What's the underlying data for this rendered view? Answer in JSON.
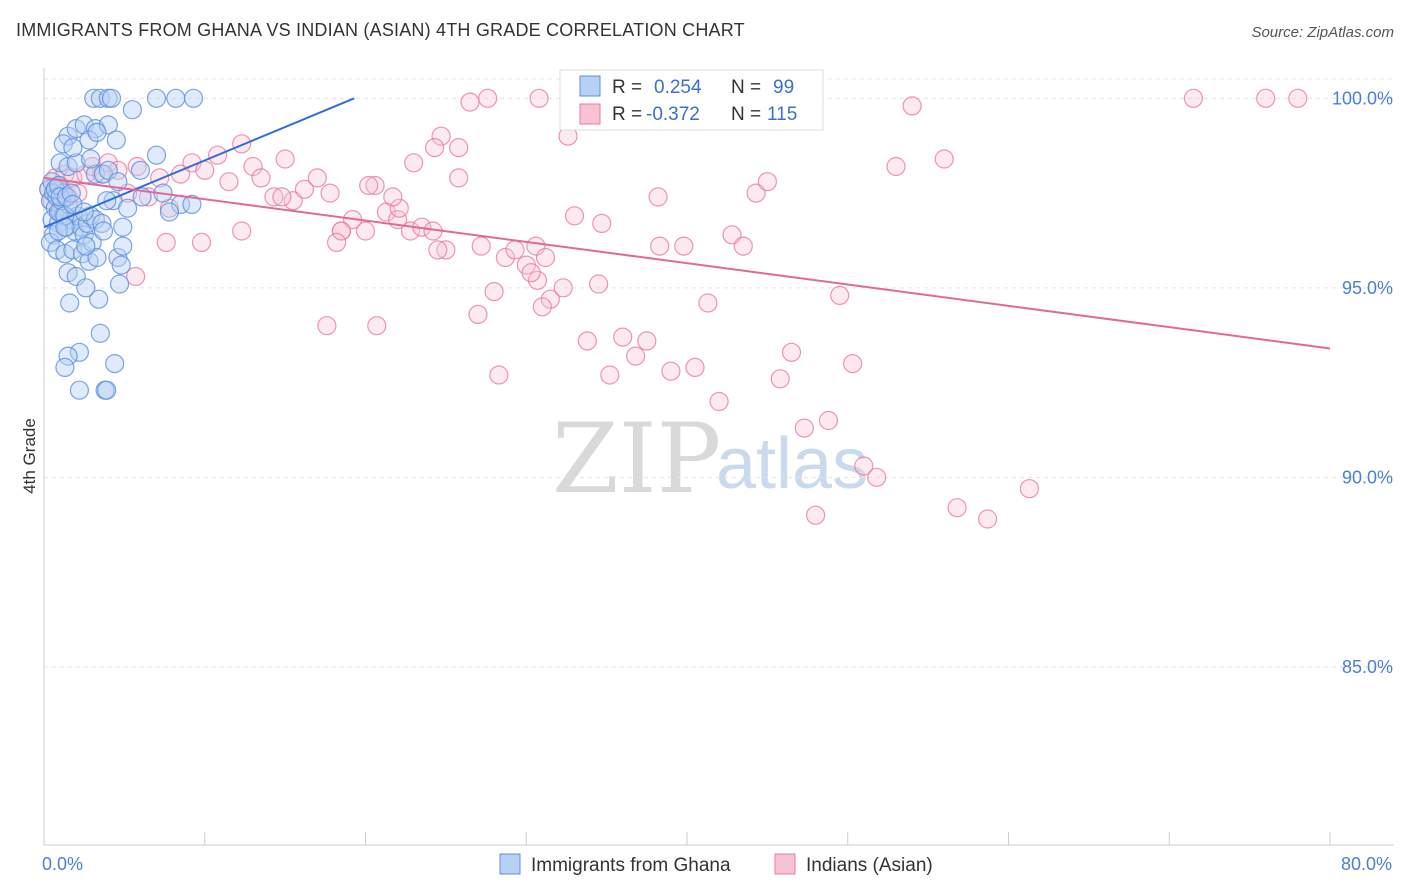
{
  "header": {
    "title": "IMMIGRANTS FROM GHANA VS INDIAN (ASIAN) 4TH GRADE CORRELATION CHART",
    "source": "Source: ZipAtlas.com"
  },
  "watermark": {
    "zip": "ZIP",
    "atlas": "atlas"
  },
  "legend": {
    "r_label": "R =",
    "n_label": "N =",
    "series": [
      {
        "name": "Immigrants from Ghana",
        "r": "0.254",
        "n": "99",
        "color": "#5b8fdc",
        "fill": "#b8d0f3"
      },
      {
        "name": "Indians (Asian)",
        "r": "-0.372",
        "n": "115",
        "color": "#e87ba0",
        "fill": "#f6c3d5"
      }
    ]
  },
  "chart_data": {
    "type": "scatter",
    "title": "IMMIGRANTS FROM GHANA VS INDIAN (ASIAN) 4TH GRADE CORRELATION CHART",
    "xlabel": "",
    "ylabel": "4th Grade",
    "xlim": [
      0,
      80
    ],
    "ylim": [
      80.3,
      100.8
    ],
    "x_tick_labels": [
      "0.0%",
      "80.0%"
    ],
    "y_ticks": [
      85,
      90,
      95,
      100
    ],
    "y_tick_labels": [
      "85.0%",
      "90.0%",
      "95.0%",
      "100.0%"
    ],
    "grid": true,
    "series": [
      {
        "name": "Immigrants from Ghana",
        "color": "#5b8fdc",
        "trend": {
          "x": [
            0.0,
            19.3
          ],
          "y": [
            96.6,
            100.0
          ]
        },
        "points": [
          [
            0.3,
            97.6
          ],
          [
            0.4,
            97.3
          ],
          [
            0.5,
            97.8
          ],
          [
            0.6,
            97.5
          ],
          [
            0.7,
            97.1
          ],
          [
            0.8,
            97.4
          ],
          [
            0.5,
            96.8
          ],
          [
            0.9,
            96.7
          ],
          [
            1.0,
            97.0
          ],
          [
            0.6,
            96.4
          ],
          [
            1.2,
            96.9
          ],
          [
            1.4,
            96.6
          ],
          [
            1.5,
            97.2
          ],
          [
            1.7,
            96.8
          ],
          [
            1.9,
            96.5
          ],
          [
            2.1,
            96.9
          ],
          [
            2.3,
            96.6
          ],
          [
            2.5,
            96.4
          ],
          [
            2.7,
            96.7
          ],
          [
            2.9,
            96.9
          ],
          [
            0.4,
            96.2
          ],
          [
            0.8,
            96.0
          ],
          [
            1.3,
            95.9
          ],
          [
            1.8,
            96.0
          ],
          [
            2.4,
            95.9
          ],
          [
            3.0,
            96.2
          ],
          [
            1.5,
            95.4
          ],
          [
            2.0,
            95.3
          ],
          [
            2.8,
            95.7
          ],
          [
            3.3,
            95.8
          ],
          [
            4.6,
            95.8
          ],
          [
            4.8,
            95.6
          ],
          [
            1.6,
            94.6
          ],
          [
            3.4,
            94.7
          ],
          [
            3.5,
            93.8
          ],
          [
            2.2,
            93.3
          ],
          [
            1.5,
            93.2
          ],
          [
            1.3,
            92.9
          ],
          [
            4.4,
            93.0
          ],
          [
            2.2,
            92.3
          ],
          [
            3.8,
            92.3
          ],
          [
            3.9,
            92.3
          ],
          [
            1.0,
            98.3
          ],
          [
            1.5,
            98.2
          ],
          [
            2.0,
            98.3
          ],
          [
            3.2,
            98.0
          ],
          [
            3.7,
            98.0
          ],
          [
            4.0,
            98.1
          ],
          [
            6.0,
            98.1
          ],
          [
            0.9,
            97.0
          ],
          [
            1.5,
            99.0
          ],
          [
            2.0,
            99.2
          ],
          [
            2.5,
            99.3
          ],
          [
            3.2,
            99.2
          ],
          [
            4.0,
            99.3
          ],
          [
            1.2,
            98.8
          ],
          [
            1.8,
            98.7
          ],
          [
            2.8,
            98.9
          ],
          [
            4.5,
            98.9
          ],
          [
            5.5,
            99.7
          ],
          [
            3.1,
            100.0
          ],
          [
            3.5,
            100.0
          ],
          [
            4.0,
            100.0
          ],
          [
            4.2,
            100.0
          ],
          [
            7.0,
            100.0
          ],
          [
            8.2,
            100.0
          ],
          [
            9.3,
            100.0
          ],
          [
            2.9,
            98.4
          ],
          [
            7.0,
            98.5
          ],
          [
            3.3,
            99.1
          ],
          [
            4.6,
            97.8
          ],
          [
            4.3,
            97.3
          ],
          [
            6.1,
            97.4
          ],
          [
            7.4,
            97.5
          ],
          [
            8.5,
            97.2
          ],
          [
            9.2,
            97.2
          ],
          [
            7.8,
            97.0
          ],
          [
            4.9,
            96.6
          ],
          [
            5.2,
            97.1
          ],
          [
            3.9,
            97.3
          ],
          [
            1.1,
            97.3
          ],
          [
            1.2,
            97.5
          ],
          [
            0.7,
            97.6
          ],
          [
            0.9,
            97.7
          ],
          [
            1.0,
            97.4
          ],
          [
            1.4,
            97.4
          ],
          [
            1.7,
            97.5
          ],
          [
            1.3,
            96.9
          ],
          [
            0.9,
            96.5
          ],
          [
            3.2,
            96.8
          ],
          [
            2.6,
            95.0
          ],
          [
            4.7,
            95.1
          ],
          [
            3.6,
            96.7
          ],
          [
            4.9,
            96.1
          ],
          [
            2.6,
            96.1
          ],
          [
            1.3,
            96.6
          ],
          [
            1.8,
            97.2
          ],
          [
            2.5,
            97.0
          ],
          [
            3.7,
            96.5
          ]
        ]
      },
      {
        "name": "Indians (Asian)",
        "color": "#e87ba0",
        "trend": {
          "x": [
            0.0,
            80.0
          ],
          "y": [
            97.9,
            93.4
          ]
        },
        "points": [
          [
            0.3,
            97.6
          ],
          [
            0.5,
            97.3
          ],
          [
            0.7,
            97.9
          ],
          [
            1.0,
            97.7
          ],
          [
            1.3,
            98.0
          ],
          [
            1.5,
            97.4
          ],
          [
            1.8,
            97.9
          ],
          [
            2.1,
            97.5
          ],
          [
            2.6,
            98.0
          ],
          [
            3.0,
            98.2
          ],
          [
            3.6,
            98.0
          ],
          [
            4.0,
            98.3
          ],
          [
            4.6,
            98.1
          ],
          [
            5.2,
            97.5
          ],
          [
            5.8,
            98.2
          ],
          [
            6.5,
            97.4
          ],
          [
            7.2,
            97.9
          ],
          [
            7.8,
            97.1
          ],
          [
            8.5,
            98.0
          ],
          [
            9.2,
            98.3
          ],
          [
            10.0,
            98.1
          ],
          [
            10.8,
            98.5
          ],
          [
            11.5,
            97.8
          ],
          [
            12.3,
            98.8
          ],
          [
            13.0,
            98.2
          ],
          [
            13.5,
            97.9
          ],
          [
            14.3,
            97.4
          ],
          [
            15.0,
            98.4
          ],
          [
            15.5,
            97.3
          ],
          [
            16.2,
            97.6
          ],
          [
            17.0,
            97.9
          ],
          [
            17.8,
            97.5
          ],
          [
            18.5,
            96.5
          ],
          [
            19.2,
            96.8
          ],
          [
            20.0,
            96.5
          ],
          [
            20.6,
            97.7
          ],
          [
            21.3,
            97.0
          ],
          [
            22.0,
            96.8
          ],
          [
            22.8,
            96.5
          ],
          [
            23.5,
            96.6
          ],
          [
            24.2,
            96.5
          ],
          [
            25.0,
            96.0
          ],
          [
            25.8,
            98.7
          ],
          [
            26.5,
            99.9
          ],
          [
            27.2,
            96.1
          ],
          [
            28.0,
            94.9
          ],
          [
            28.7,
            95.8
          ],
          [
            29.3,
            96.0
          ],
          [
            30.0,
            95.6
          ],
          [
            30.7,
            95.2
          ],
          [
            31.5,
            94.7
          ],
          [
            32.3,
            95.0
          ],
          [
            33.0,
            96.9
          ],
          [
            33.8,
            93.6
          ],
          [
            34.5,
            95.1
          ],
          [
            35.2,
            92.7
          ],
          [
            36.0,
            93.7
          ],
          [
            36.8,
            93.2
          ],
          [
            37.5,
            93.6
          ],
          [
            38.3,
            96.1
          ],
          [
            39.0,
            92.8
          ],
          [
            39.8,
            96.1
          ],
          [
            40.5,
            92.9
          ],
          [
            41.3,
            94.6
          ],
          [
            42.0,
            92.0
          ],
          [
            42.8,
            96.4
          ],
          [
            43.5,
            96.1
          ],
          [
            44.3,
            97.5
          ],
          [
            45.0,
            97.8
          ],
          [
            45.8,
            92.6
          ],
          [
            46.5,
            93.3
          ],
          [
            47.3,
            91.3
          ],
          [
            48.0,
            89.0
          ],
          [
            48.8,
            91.5
          ],
          [
            49.5,
            94.8
          ],
          [
            50.3,
            93.0
          ],
          [
            51.0,
            90.3
          ],
          [
            51.8,
            90.0
          ],
          [
            54.0,
            99.8
          ],
          [
            53.0,
            98.2
          ],
          [
            56.0,
            98.4
          ],
          [
            56.8,
            89.2
          ],
          [
            58.7,
            88.9
          ],
          [
            61.3,
            89.7
          ],
          [
            71.5,
            100.0
          ],
          [
            76.0,
            100.0
          ],
          [
            78.0,
            100.0
          ],
          [
            27.6,
            100.0
          ],
          [
            30.8,
            100.0
          ],
          [
            32.6,
            99.0
          ],
          [
            30.6,
            96.1
          ],
          [
            31.0,
            94.5
          ],
          [
            30.3,
            95.4
          ],
          [
            24.7,
            99.0
          ],
          [
            24.3,
            98.7
          ],
          [
            23.0,
            98.3
          ],
          [
            25.8,
            97.9
          ],
          [
            22.1,
            97.1
          ],
          [
            21.7,
            97.4
          ],
          [
            20.2,
            97.7
          ],
          [
            18.5,
            96.5
          ],
          [
            18.2,
            96.2
          ],
          [
            17.6,
            94.0
          ],
          [
            20.7,
            94.0
          ],
          [
            24.5,
            96.0
          ],
          [
            27.0,
            94.3
          ],
          [
            28.3,
            92.7
          ],
          [
            31.2,
            95.8
          ],
          [
            38.2,
            97.4
          ],
          [
            34.7,
            96.7
          ],
          [
            5.7,
            95.3
          ],
          [
            7.6,
            96.2
          ],
          [
            9.8,
            96.2
          ],
          [
            12.3,
            96.5
          ],
          [
            14.8,
            97.4
          ]
        ]
      }
    ]
  }
}
